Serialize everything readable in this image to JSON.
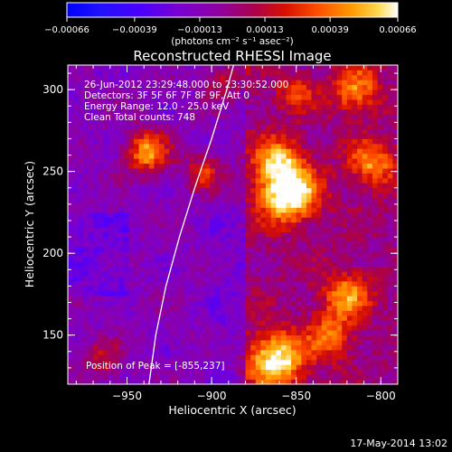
{
  "chart_data": {
    "type": "heatmap",
    "title": "Reconstructed RHESSI Image",
    "xlabel": "Heliocentric X (arcsec)",
    "ylabel": "Heliocentric Y (arcsec)",
    "xlim": [
      -985,
      -790
    ],
    "ylim": [
      120,
      315
    ],
    "x_ticks": [
      -950,
      -900,
      -850,
      -800
    ],
    "y_ticks": [
      150,
      200,
      250,
      300
    ],
    "x_tick_labels": [
      "−950",
      "−900",
      "−850",
      "−800"
    ],
    "y_tick_labels": [
      "150",
      "200",
      "250",
      "300"
    ],
    "colorbar": {
      "range": [
        -0.00066,
        0.00066
      ],
      "ticks": [
        -0.00066,
        -0.00039,
        -0.00013,
        0.00013,
        0.00039,
        0.00066
      ],
      "tick_labels": [
        "−0.00066",
        "−0.00039",
        "−0.00013",
        "0.00013",
        "0.00039",
        "0.00066"
      ],
      "units_text": "(photons cm⁻² s⁻¹ asec⁻²)",
      "colors": [
        "#0000ff",
        "#5000ff",
        "#8000c0",
        "#9000a0",
        "#b00040",
        "#e02000",
        "#ff6000",
        "#ffb000",
        "#ffff80",
        "#ffffff"
      ]
    },
    "annotations": [
      "26-Jun-2012 23:29:48.000 to 23:30:52.000",
      "Detectors: 3F 5F 6F 7F 8F 9F, Att 0",
      "Energy Range: 12.0 - 25.0 keV",
      "Clean    Total counts: 748"
    ],
    "peak": {
      "text": "Position of Peak = [-855,237]",
      "x": -855,
      "y": 237
    },
    "limb_line": [
      [
        -937,
        120
      ],
      [
        -933,
        150
      ],
      [
        -927,
        180
      ],
      [
        -919,
        210
      ],
      [
        -910,
        240
      ],
      [
        -900,
        270
      ],
      [
        -891,
        300
      ],
      [
        -887,
        315
      ]
    ]
  },
  "footer": {
    "date": "17-May-2014 13:02"
  }
}
